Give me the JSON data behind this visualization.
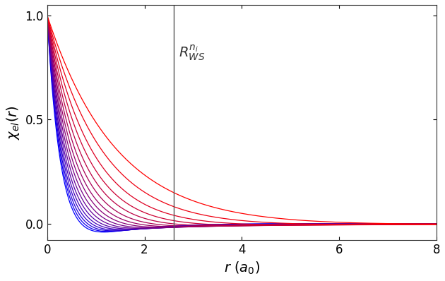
{
  "xlim": [
    0,
    8
  ],
  "ylim": [
    -0.08,
    1.05
  ],
  "xlabel": "$r\\ (a_0)$",
  "ylabel": "$\\chi_{el}(r)$",
  "vline_x": 2.6,
  "vline_label": "$R_{WS}^{n_i}$",
  "n_curves": 16,
  "background_color": "#ffffff",
  "xticks": [
    0,
    2,
    4,
    6,
    8
  ],
  "yticks": [
    0,
    0.5,
    1
  ],
  "xlabel_fontsize": 14,
  "ylabel_fontsize": 14,
  "annotation_fontsize": 14,
  "linewidth": 0.9
}
